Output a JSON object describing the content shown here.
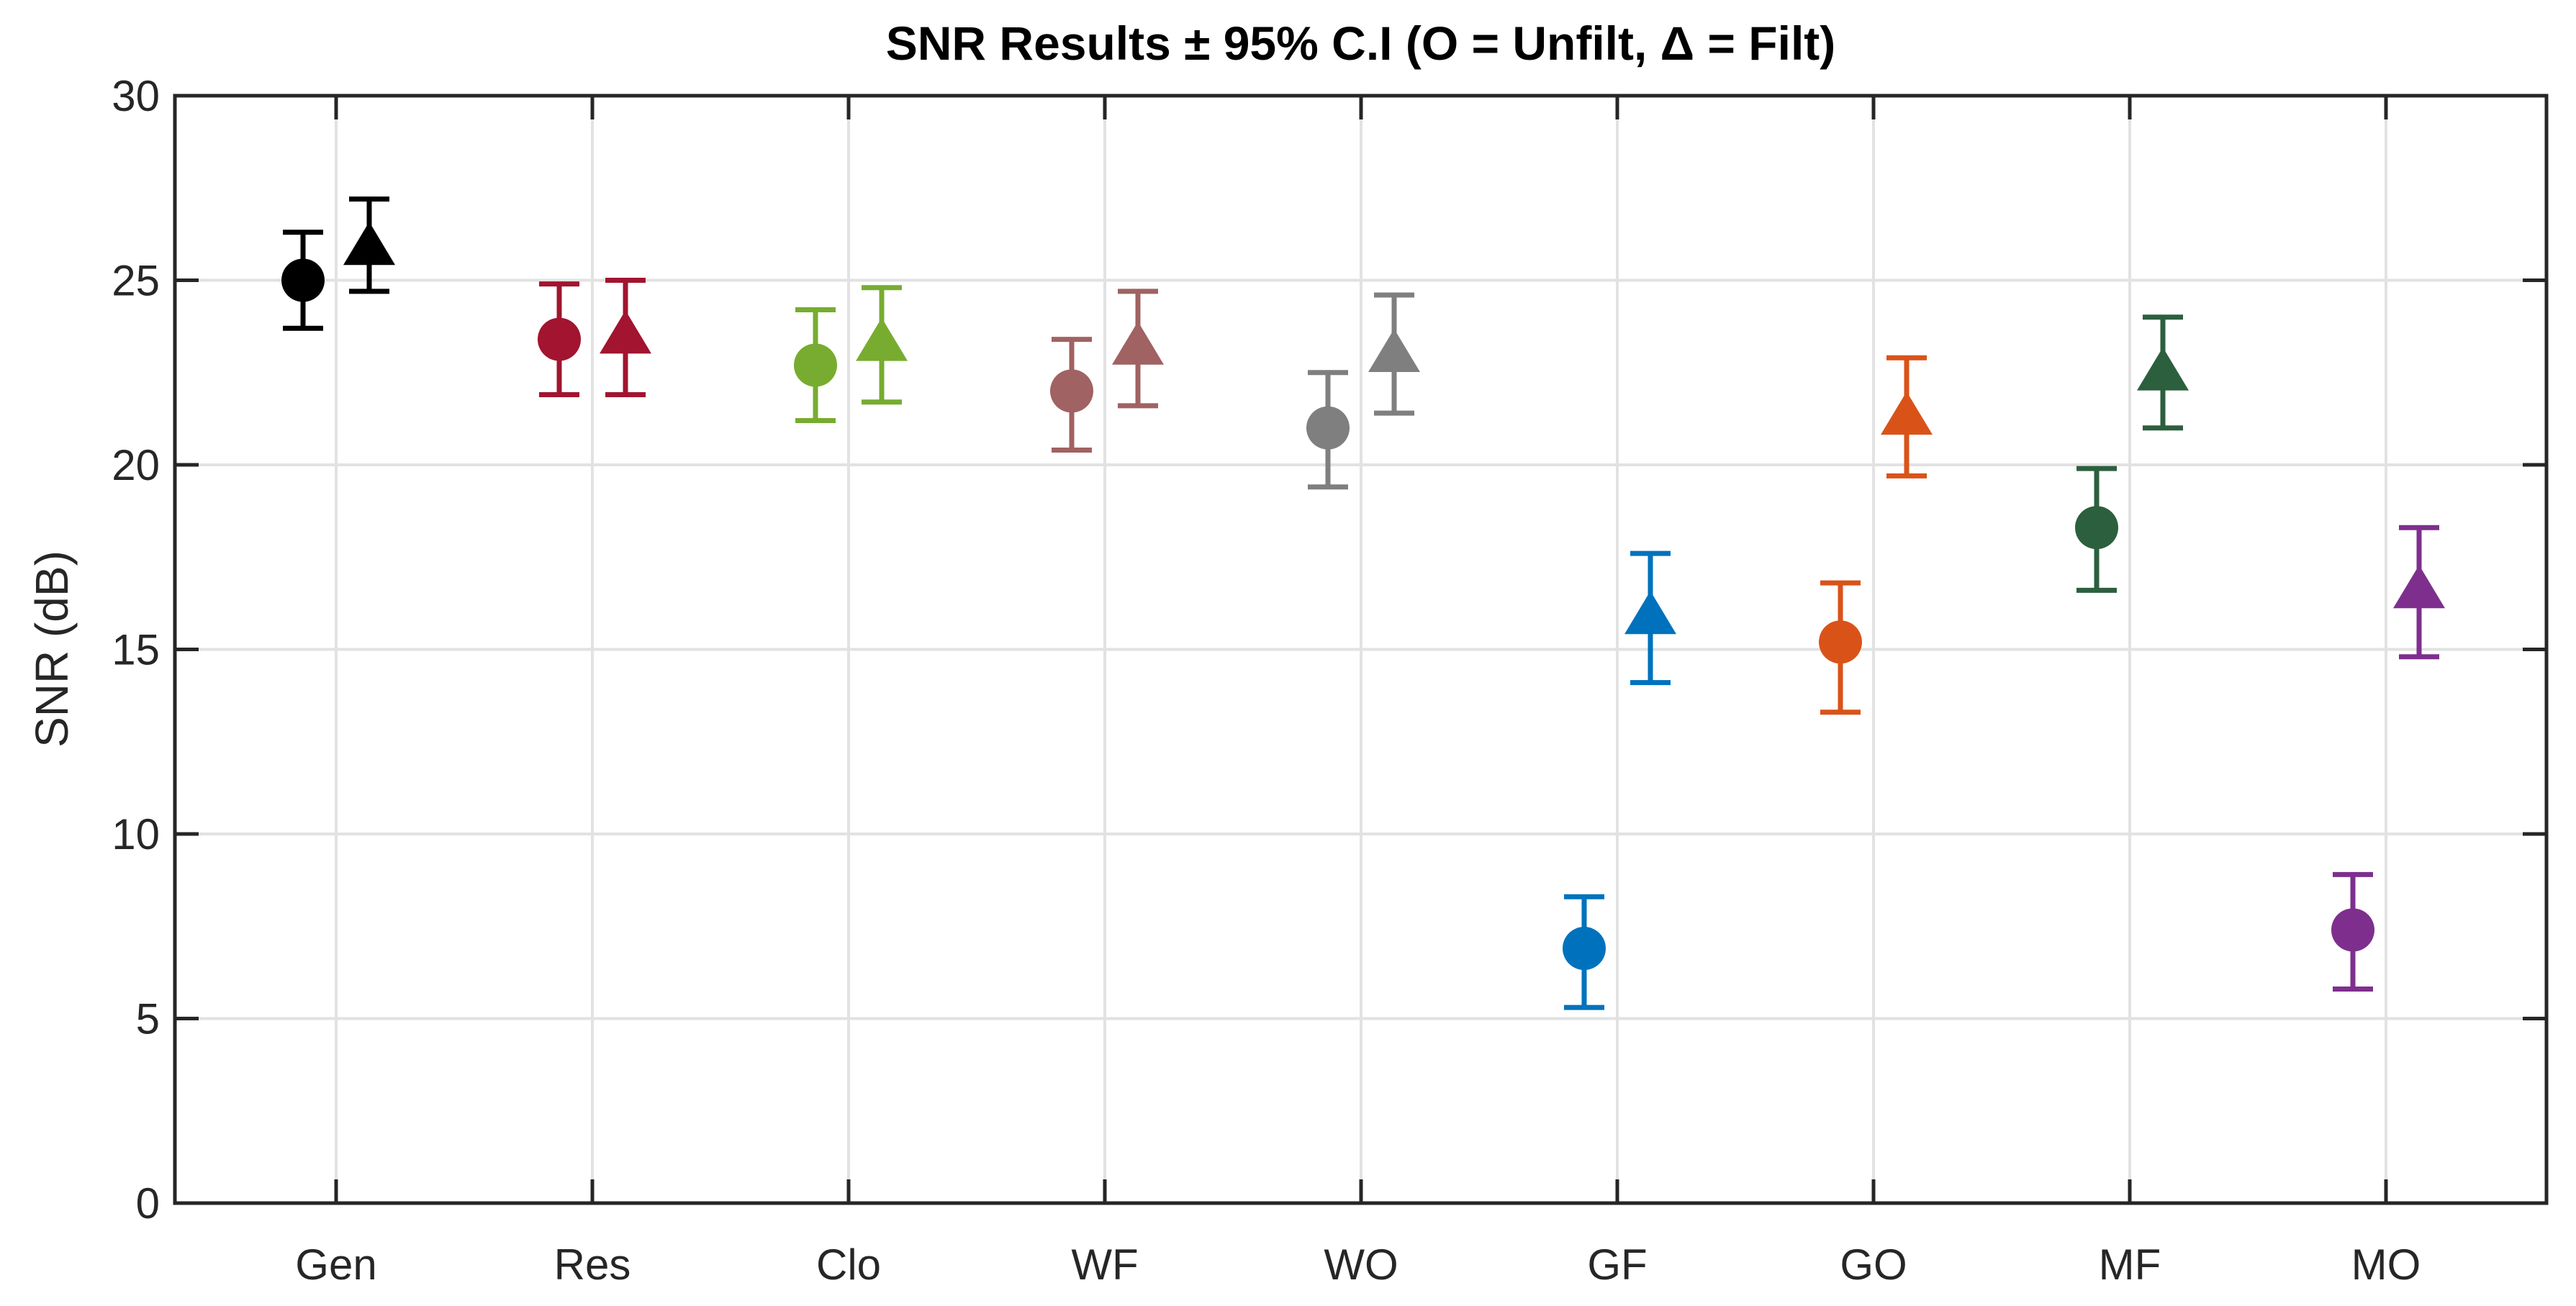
{
  "chart_data": {
    "type": "scatter",
    "subtype": "errorbar",
    "title": "SNR Results ± 95% C.I (O = Unfilt, Δ = Filt)",
    "xlabel": "",
    "ylabel": "SNR (dB)",
    "ylim": [
      0,
      30
    ],
    "yticks": [
      0,
      5,
      10,
      15,
      20,
      25,
      30
    ],
    "grid": "on",
    "legend_position": "in-title",
    "categories": [
      "Gen",
      "Res",
      "Clo",
      "WF",
      "WO",
      "GF",
      "GO",
      "MF",
      "MO"
    ],
    "colors": [
      "#000000",
      "#A2142F",
      "#77AC30",
      "#A06262",
      "#7F7F7F",
      "#0072BD",
      "#D95319",
      "#2C5F3E",
      "#7E2F8E"
    ],
    "series": [
      {
        "name": "Unfilt",
        "marker": "circle",
        "values": [
          25.0,
          23.4,
          22.7,
          22.0,
          21.0,
          6.9,
          15.2,
          18.3,
          7.4
        ],
        "ci_low": [
          23.7,
          21.9,
          21.2,
          20.4,
          19.4,
          5.3,
          13.3,
          16.6,
          5.8
        ],
        "ci_high": [
          26.3,
          24.9,
          24.2,
          23.4,
          22.5,
          8.3,
          16.8,
          19.9,
          8.9
        ]
      },
      {
        "name": "Filt",
        "marker": "triangle",
        "values": [
          26.0,
          23.6,
          23.4,
          23.3,
          23.1,
          16.0,
          21.4,
          22.6,
          16.7
        ],
        "ci_low": [
          24.7,
          21.9,
          21.7,
          21.6,
          21.4,
          14.1,
          19.7,
          21.0,
          14.8
        ],
        "ci_high": [
          27.2,
          25.0,
          24.8,
          24.7,
          24.6,
          17.6,
          22.9,
          24.0,
          18.3
        ]
      }
    ]
  }
}
